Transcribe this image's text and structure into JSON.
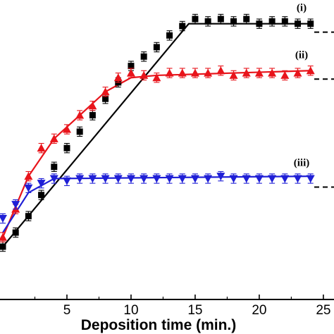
{
  "chart_data": {
    "type": "scatter",
    "title": "",
    "xlabel": "Deposition time (min.)",
    "ylabel": "",
    "xlim": [
      0,
      25.5
    ],
    "ylim": [
      0,
      1
    ],
    "x_ticks": [
      5,
      10,
      15,
      20,
      25
    ],
    "grid": false,
    "legend": "none",
    "series": [
      {
        "name": "(i)",
        "marker": "square",
        "color": "#000000",
        "x": [
          0,
          1,
          2,
          3,
          4,
          5,
          6,
          7,
          8,
          9,
          10,
          11,
          12,
          13,
          14,
          15,
          16,
          17,
          18,
          19,
          20,
          21,
          22,
          23,
          24
        ],
        "y": [
          0.06,
          0.12,
          0.19,
          0.28,
          0.4,
          0.48,
          0.55,
          0.62,
          0.69,
          0.76,
          0.83,
          0.87,
          0.91,
          0.96,
          1.0,
          1.03,
          1.02,
          1.03,
          1.02,
          1.03,
          1.01,
          1.02,
          1.02,
          1.01,
          1.01
        ],
        "fit_x": [
          0,
          14.5,
          24
        ],
        "fit_y": [
          0.06,
          1.01,
          1.01
        ],
        "fit_error_bar": 0.02,
        "error_bar": 0.02
      },
      {
        "name": "(ii)",
        "marker": "triangle-up",
        "color": "#e8141b",
        "x": [
          0,
          1,
          2,
          3,
          4,
          5,
          6,
          7,
          8,
          9,
          10,
          11,
          12,
          13,
          14,
          15,
          16,
          17,
          18,
          19,
          20,
          21,
          22,
          23,
          24
        ],
        "y": [
          0.1,
          0.22,
          0.36,
          0.48,
          0.52,
          0.56,
          0.62,
          0.66,
          0.72,
          0.78,
          0.8,
          0.79,
          0.78,
          0.8,
          0.8,
          0.8,
          0.8,
          0.81,
          0.79,
          0.8,
          0.8,
          0.8,
          0.79,
          0.8,
          0.81
        ],
        "fit_x": [
          0,
          2,
          4,
          6,
          8,
          10,
          12,
          24
        ],
        "fit_y": [
          0.1,
          0.36,
          0.52,
          0.62,
          0.72,
          0.78,
          0.79,
          0.81
        ],
        "error_bar": 0.02
      },
      {
        "name": "(iii)",
        "marker": "triangle-down",
        "color": "#1f1fd6",
        "x": [
          0,
          1,
          2,
          3,
          4,
          5,
          6,
          7,
          8,
          9,
          10,
          11,
          12,
          13,
          14,
          15,
          16,
          17,
          18,
          19,
          20,
          21,
          22,
          23,
          24
        ],
        "y": [
          0.18,
          0.24,
          0.31,
          0.33,
          0.35,
          0.34,
          0.35,
          0.35,
          0.35,
          0.35,
          0.35,
          0.35,
          0.35,
          0.35,
          0.35,
          0.35,
          0.35,
          0.36,
          0.35,
          0.35,
          0.35,
          0.35,
          0.35,
          0.35,
          0.35
        ],
        "fit_x": [
          0,
          2,
          4,
          24
        ],
        "fit_y": [
          0.12,
          0.29,
          0.35,
          0.36
        ],
        "error_bar": 0.02
      }
    ]
  }
}
